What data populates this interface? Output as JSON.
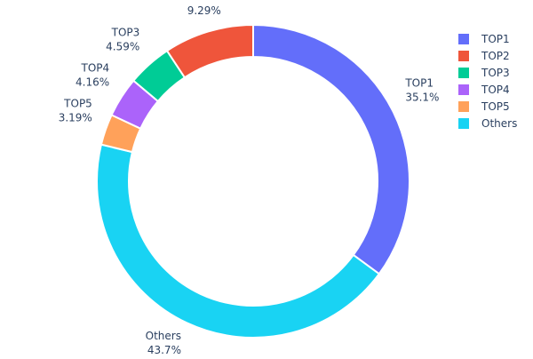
{
  "chart_data": {
    "type": "pie",
    "hole": true,
    "direction": "clockwise",
    "draw_order": [
      "TOP1",
      "Others",
      "TOP5",
      "TOP4",
      "TOP3",
      "TOP2"
    ],
    "slices": [
      {
        "label": "TOP1",
        "value": 35.1,
        "text": "35.1%",
        "color": "#636efa"
      },
      {
        "label": "TOP2",
        "value": 9.29,
        "text": "9.29%",
        "color": "#ef553b"
      },
      {
        "label": "TOP3",
        "value": 4.59,
        "text": "4.59%",
        "color": "#00cc96"
      },
      {
        "label": "TOP4",
        "value": 4.16,
        "text": "4.16%",
        "color": "#ab63fa"
      },
      {
        "label": "TOP5",
        "value": 3.19,
        "text": "3.19%",
        "color": "#ffa15a"
      },
      {
        "label": "Others",
        "value": 43.7,
        "text": "43.7%",
        "color": "#19d3f3"
      }
    ],
    "legend": {
      "placement": "top-right",
      "entries": [
        "TOP1",
        "TOP2",
        "TOP3",
        "TOP4",
        "TOP5",
        "Others"
      ]
    }
  }
}
